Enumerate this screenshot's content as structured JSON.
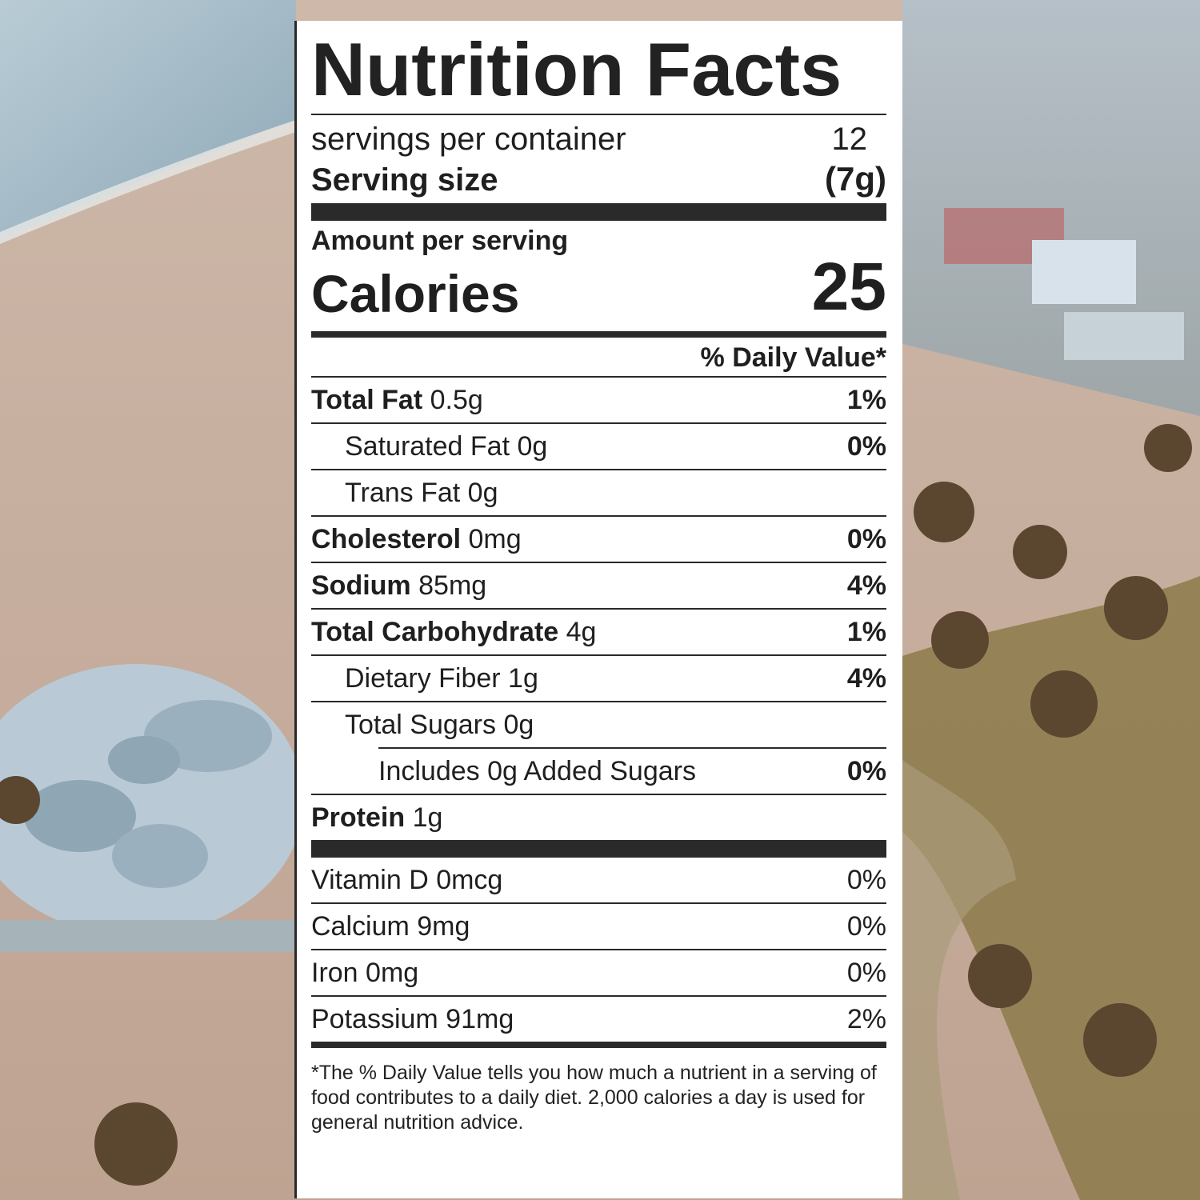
{
  "label": {
    "title": "Nutrition Facts",
    "servings_label": "servings per container",
    "servings_value": "12",
    "serving_size_label": "Serving size",
    "serving_size_value": "(7g)",
    "amount_per_serving": "Amount per serving",
    "calories_label": "Calories",
    "calories_value": "25",
    "daily_value_header": "% Daily Value*",
    "nutrients": [
      {
        "name": "Total Fat",
        "amount": "0.5g",
        "dv": "1%"
      },
      {
        "name": "Saturated Fat 0g",
        "dv": "0%"
      },
      {
        "name": "Trans Fat 0g"
      },
      {
        "name": "Cholesterol",
        "amount": "0mg",
        "dv": "0%"
      },
      {
        "name": "Sodium",
        "amount": "85mg",
        "dv": "4%"
      },
      {
        "name": "Total Carbohydrate",
        "amount": "4g",
        "dv": "1%"
      },
      {
        "name": "Dietary Fiber 1g",
        "dv": "4%"
      },
      {
        "name": "Total Sugars 0g"
      },
      {
        "name": "Includes 0g Added Sugars",
        "dv": "0%"
      },
      {
        "name": "Protein",
        "amount": "1g"
      }
    ],
    "vitamins": [
      {
        "name": "Vitamin D 0mcg",
        "dv": "0%"
      },
      {
        "name": "Calcium 9mg",
        "dv": "0%"
      },
      {
        "name": "Iron 0mg",
        "dv": "0%"
      },
      {
        "name": "Potassium 91mg",
        "dv": "2%"
      }
    ],
    "footnote": "*The % Daily Value tells you how much a nutrient in a serving of food contributes to a daily diet. 2,000 calories a day is used for general nutrition advice."
  },
  "colors": {
    "sand": "#c9b3a3",
    "ocean": "#8fa9b8",
    "skatepark": "#b8cad6",
    "grass": "#8c7a4a",
    "ink": "#222222"
  }
}
